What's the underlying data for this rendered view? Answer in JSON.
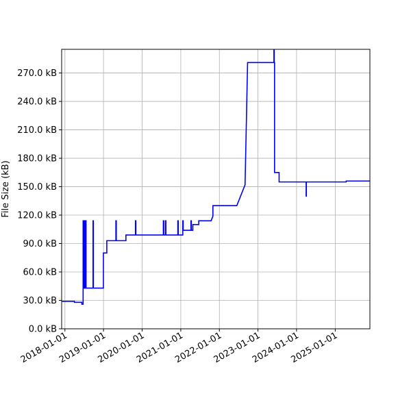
{
  "chart_data": {
    "type": "line",
    "title": "",
    "xlabel": "",
    "ylabel": "File Size (kB)",
    "grid": true,
    "legend": "none",
    "line_color": "#0000ff",
    "xlim": [
      "2017-12-01",
      "2025-11-25"
    ],
    "ylim": [
      0,
      295
    ],
    "x_ticks": [
      "2018-01-01",
      "2019-01-01",
      "2020-01-01",
      "2021-01-01",
      "2022-01-01",
      "2023-01-01",
      "2024-01-01",
      "2025-01-01"
    ],
    "y_ticks": [
      0,
      30,
      60,
      90,
      120,
      150,
      180,
      210,
      240,
      270
    ],
    "y_tick_labels": [
      "0.0 kB",
      "30.0 kB",
      "60.0 kB",
      "90.0 kB",
      "120.0 kB",
      "150.0 kB",
      "180.0 kB",
      "210.0 kB",
      "240.0 kB",
      "270.0 kB"
    ],
    "series": [
      {
        "x": [
          "2017-12-01",
          "2018-04-01",
          "2018-04-01",
          "2018-06-10",
          "2018-06-10",
          "2018-06-22",
          "2018-06-22",
          "2018-06-27",
          "2018-06-27",
          "2018-06-30",
          "2018-06-30",
          "2018-07-04",
          "2018-07-04",
          "2018-07-08",
          "2018-07-08",
          "2018-07-12",
          "2018-07-12",
          "2018-07-17",
          "2018-07-17",
          "2018-07-20",
          "2018-07-20",
          "2018-09-24",
          "2018-09-24",
          "2018-09-27",
          "2018-09-27",
          "2018-12-31",
          "2018-12-31",
          "2019-02-01",
          "2019-02-01",
          "2019-04-28",
          "2019-04-28",
          "2019-05-02",
          "2019-05-02",
          "2019-08-01",
          "2019-08-01",
          "2019-10-30",
          "2019-10-30",
          "2019-11-03",
          "2019-11-03",
          "2020-07-20",
          "2020-07-20",
          "2020-07-24",
          "2020-07-24",
          "2020-08-09",
          "2020-08-09",
          "2020-08-13",
          "2020-08-13",
          "2020-12-04",
          "2020-12-04",
          "2020-12-08",
          "2020-12-08",
          "2021-01-20",
          "2021-01-20",
          "2021-01-24",
          "2021-01-24",
          "2021-04-07",
          "2021-04-07",
          "2021-04-11",
          "2021-04-11",
          "2021-04-25",
          "2021-04-25",
          "2021-06-20",
          "2021-06-20",
          "2021-10-15",
          "2021-11-01",
          "2021-11-01",
          "2022-06-15",
          "2022-09-01",
          "2022-09-01",
          "2022-09-25",
          "2022-09-25",
          "2023-06-01",
          "2023-06-01",
          "2023-06-04",
          "2023-06-04",
          "2023-06-07",
          "2023-06-07",
          "2023-07-20",
          "2023-07-20",
          "2024-04-01",
          "2024-04-01",
          "2024-04-03",
          "2024-04-03",
          "2024-04-05",
          "2024-04-05",
          "2025-04-15",
          "2025-04-15",
          "2025-11-25"
        ],
        "y": [
          29,
          29,
          28,
          28,
          26,
          26,
          114,
          114,
          43,
          43,
          114,
          114,
          43,
          43,
          114,
          114,
          43,
          43,
          114,
          114,
          43,
          43,
          114,
          114,
          43,
          43,
          80,
          80,
          93,
          93,
          114,
          114,
          93,
          93,
          99,
          99,
          114,
          114,
          99,
          99,
          114,
          114,
          99,
          99,
          114,
          114,
          99,
          99,
          114,
          114,
          99,
          99,
          114,
          114,
          104,
          104,
          114,
          114,
          104,
          104,
          110,
          110,
          114,
          114,
          119,
          130,
          130,
          152,
          152,
          281,
          281,
          281,
          297,
          297,
          281,
          281,
          165,
          165,
          155,
          155,
          140,
          140,
          155,
          155,
          155,
          155,
          156,
          156
        ]
      }
    ]
  }
}
